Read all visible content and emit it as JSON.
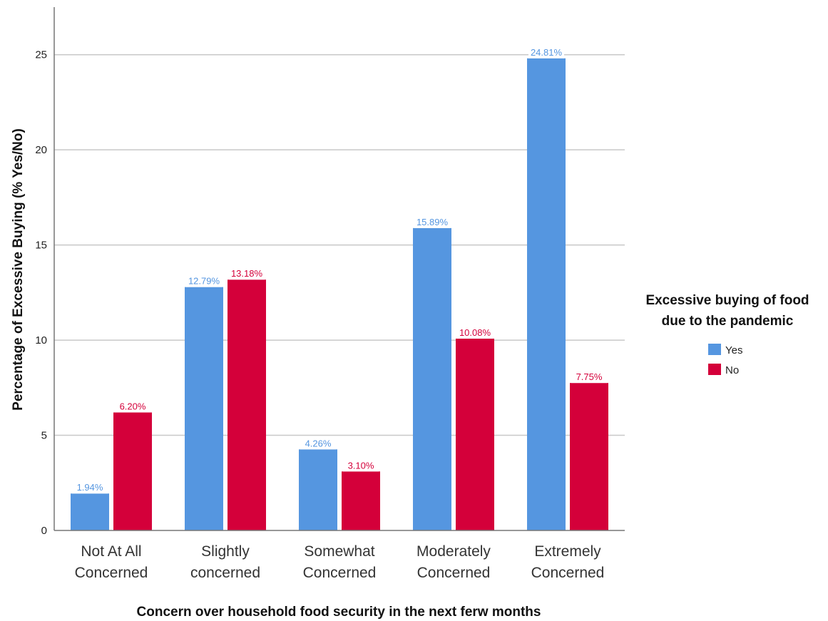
{
  "chart_data": {
    "type": "bar",
    "title": "",
    "xlabel": "Concern over household food security in the next ferw months",
    "ylabel": "Percentage of Excessive Buying (% Yes/No)",
    "ylim": [
      0,
      27.5
    ],
    "yticks": [
      "0",
      "5",
      "10",
      "15",
      "20",
      "25"
    ],
    "grid": true,
    "legend_position": "right",
    "legend_title": [
      "Excessive buying of food",
      "due to the pandemic"
    ],
    "categories": [
      [
        "Not At All",
        "Concerned"
      ],
      [
        "Slightly",
        "concerned"
      ],
      [
        "Somewhat",
        "Concerned"
      ],
      [
        "Moderately",
        "Concerned"
      ],
      [
        "Extremely",
        "Concerned"
      ]
    ],
    "series": [
      {
        "name": "Yes",
        "color": "#5596e0",
        "values": [
          1.94,
          12.79,
          4.26,
          15.89,
          24.81
        ],
        "labels": [
          "1.94%",
          "12.79%",
          "4.26%",
          "15.89%",
          "24.81%"
        ]
      },
      {
        "name": "No",
        "color": "#d4003a",
        "values": [
          6.2,
          13.18,
          3.1,
          10.08,
          7.75
        ],
        "labels": [
          "6.20%",
          "13.18%",
          "3.10%",
          "10.08%",
          "7.75%"
        ]
      }
    ]
  }
}
